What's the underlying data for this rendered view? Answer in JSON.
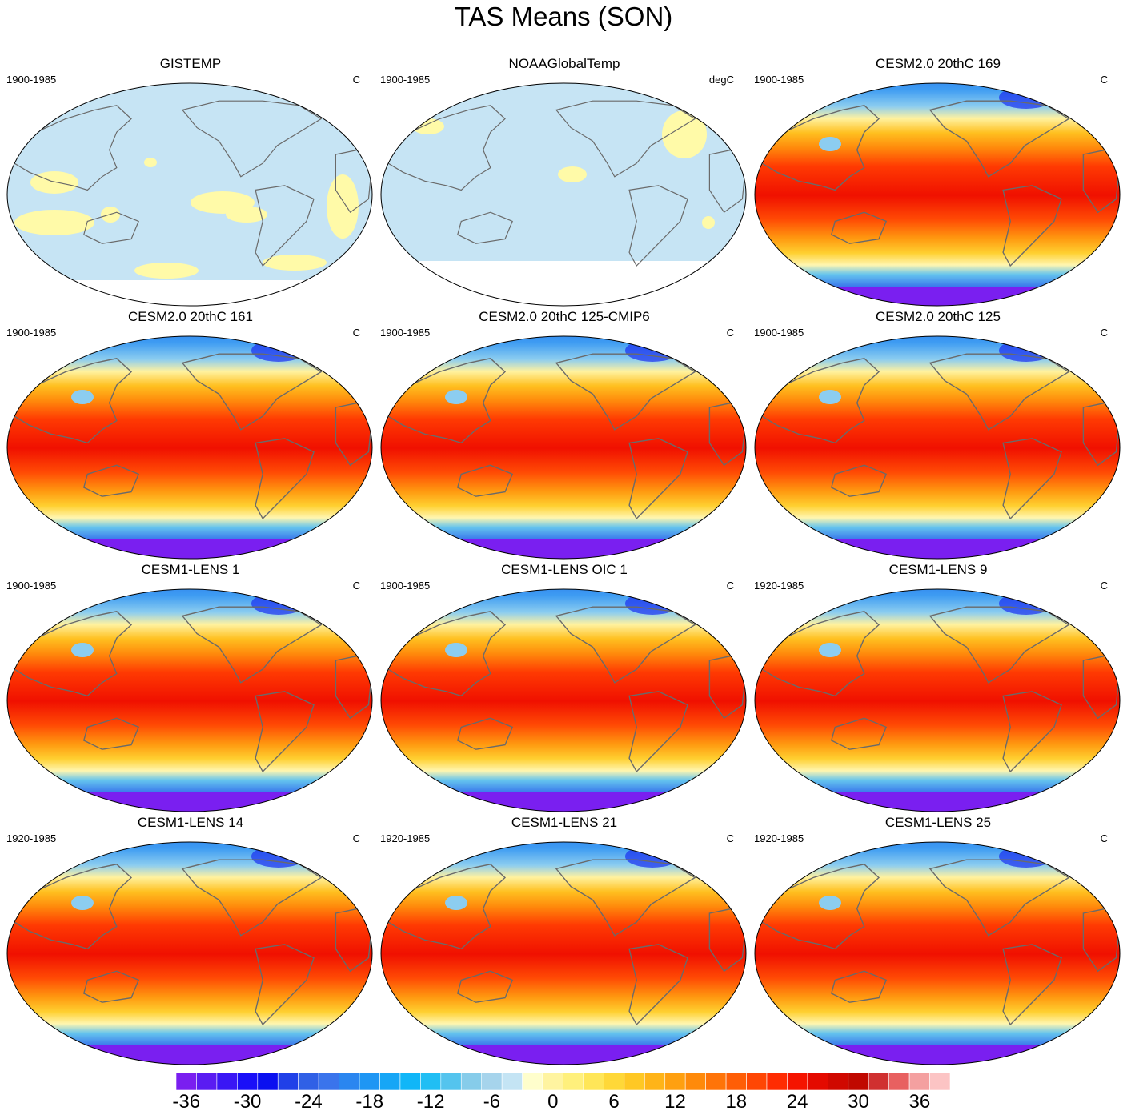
{
  "title": "TAS Means (SON)",
  "panels": [
    {
      "title": "GISTEMP",
      "period": "1900-1985",
      "units": "C",
      "style": "obs"
    },
    {
      "title": "NOAAGlobalTemp",
      "period": "1900-1985",
      "units": "degC",
      "style": "obs2"
    },
    {
      "title": "CESM2.0 20thC 169",
      "period": "1900-1985",
      "units": "C",
      "style": "model"
    },
    {
      "title": "CESM2.0 20thC 161",
      "period": "1900-1985",
      "units": "C",
      "style": "model"
    },
    {
      "title": "CESM2.0 20thC 125-CMIP6",
      "period": "1900-1985",
      "units": "C",
      "style": "model"
    },
    {
      "title": "CESM2.0 20thC 125",
      "period": "1900-1985",
      "units": "C",
      "style": "model"
    },
    {
      "title": "CESM1-LENS 1",
      "period": "1900-1985",
      "units": "C",
      "style": "model"
    },
    {
      "title": "CESM1-LENS OIC 1",
      "period": "1900-1985",
      "units": "C",
      "style": "model"
    },
    {
      "title": "CESM1-LENS 9",
      "period": "1920-1985",
      "units": "C",
      "style": "model"
    },
    {
      "title": "CESM1-LENS 14",
      "period": "1920-1985",
      "units": "C",
      "style": "model"
    },
    {
      "title": "CESM1-LENS 21",
      "period": "1920-1985",
      "units": "C",
      "style": "model"
    },
    {
      "title": "CESM1-LENS 25",
      "period": "1920-1985",
      "units": "C",
      "style": "model"
    }
  ],
  "colorbar": {
    "labels": [
      "-36",
      "-30",
      "-24",
      "-18",
      "-12",
      "-6",
      "0",
      "6",
      "12",
      "18",
      "24",
      "30",
      "36"
    ],
    "colors": [
      "#7a1ff0",
      "#5a1cf2",
      "#3a16f5",
      "#1a0ff8",
      "#0a10f0",
      "#2040e8",
      "#3060e6",
      "#3a74ec",
      "#2a86f0",
      "#1e96f4",
      "#16a6f6",
      "#10b6f8",
      "#20bef4",
      "#54c4ee",
      "#86ccea",
      "#a6d4ec",
      "#c4e4f4",
      "#fffecc",
      "#fff4a0",
      "#fff07c",
      "#ffe658",
      "#ffd838",
      "#ffc824",
      "#ffb418",
      "#ffa010",
      "#ff8a0a",
      "#ff7408",
      "#ff5e06",
      "#ff4604",
      "#ff2c02",
      "#f51400",
      "#e40a00",
      "#d00800",
      "#c00800",
      "#d03030",
      "#e86060",
      "#f4a0a0",
      "#fcc4c4"
    ],
    "tick_values": [
      -36,
      -30,
      -24,
      -18,
      -12,
      -6,
      0,
      6,
      12,
      18,
      24,
      30,
      36
    ]
  }
}
